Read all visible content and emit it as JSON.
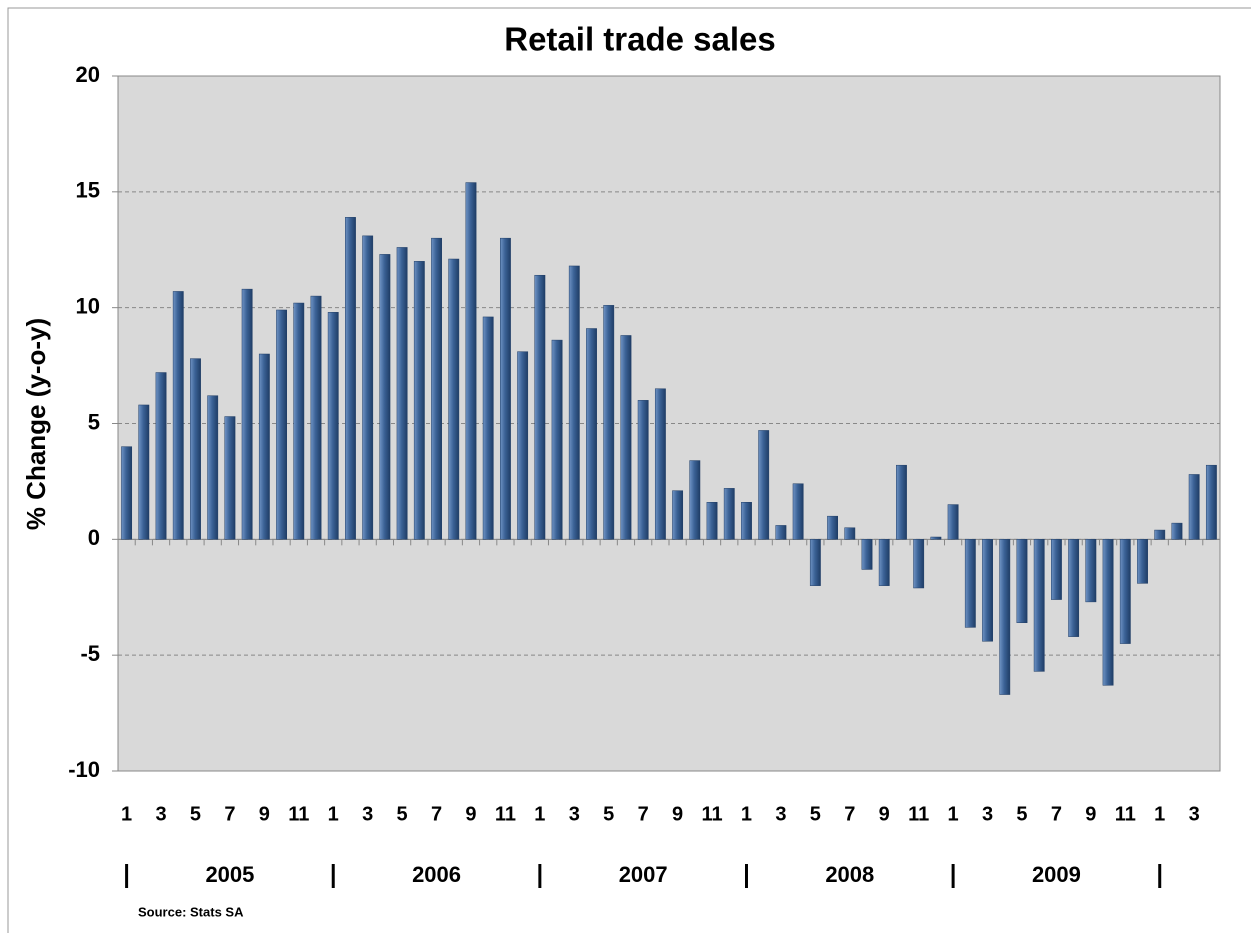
{
  "chart_data": {
    "type": "bar",
    "title": "Retail trade sales",
    "ylabel": "% Change (y-o-y)",
    "source": "Source: Stats SA",
    "categories": [
      "1",
      null,
      "3",
      null,
      "5",
      null,
      "7",
      null,
      "9",
      null,
      "11",
      null,
      "1",
      null,
      "3",
      null,
      "5",
      null,
      "7",
      null,
      "9",
      null,
      "11",
      null,
      "1",
      null,
      "3",
      null,
      "5",
      null,
      "7",
      null,
      "9",
      null,
      "11",
      null,
      "1",
      null,
      "3",
      null,
      "5",
      null,
      "7",
      null,
      "9",
      null,
      "11",
      null,
      "1",
      null,
      "3",
      null,
      "5",
      null,
      "7",
      null,
      "9",
      null,
      "11",
      null,
      "1",
      null,
      "3",
      null
    ],
    "years": [
      "2005",
      "2006",
      "2007",
      "2008",
      "2009"
    ],
    "values": [
      4.0,
      5.8,
      7.2,
      10.7,
      7.8,
      6.2,
      5.3,
      10.8,
      8.0,
      9.9,
      10.2,
      10.5,
      9.8,
      13.9,
      13.1,
      12.3,
      12.6,
      12.0,
      13.0,
      12.1,
      15.4,
      9.6,
      13.0,
      8.1,
      11.4,
      8.6,
      11.8,
      9.1,
      10.1,
      8.8,
      6.0,
      6.5,
      2.1,
      3.4,
      1.6,
      2.2,
      1.6,
      4.7,
      0.6,
      2.4,
      -2.0,
      1.0,
      0.5,
      -1.3,
      -2.0,
      3.2,
      -2.1,
      0.1,
      1.5,
      -3.8,
      -4.4,
      -6.7,
      -3.6,
      -5.7,
      -2.6,
      -4.2,
      -2.7,
      -6.3,
      -4.5,
      -1.9,
      0.4,
      0.7,
      2.8,
      3.2
    ],
    "color": "#3b6296",
    "ylim": [
      -10,
      20
    ],
    "yticks": [
      -10,
      -5,
      0,
      5,
      10,
      15,
      20
    ],
    "grid": true
  }
}
